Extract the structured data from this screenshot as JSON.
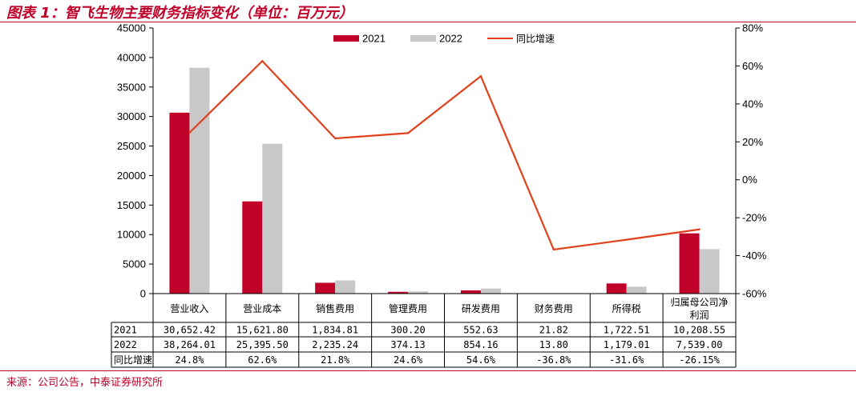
{
  "title": "图表 1：智飞生物主要财务指标变化（单位：百万元）",
  "source": "来源：公司公告，中泰证券研究所",
  "chart_data": {
    "type": "bar",
    "categories": [
      "营业收入",
      "营业成本",
      "销售费用",
      "管理费用",
      "研发费用",
      "财务费用",
      "所得税",
      "归属母公司净利润"
    ],
    "series": [
      {
        "name": "2021",
        "type": "bar",
        "axis": "left",
        "color": "#c00028",
        "values": [
          30652.42,
          15621.8,
          1834.81,
          300.2,
          552.63,
          21.82,
          1722.51,
          10208.55
        ]
      },
      {
        "name": "2022",
        "type": "bar",
        "axis": "left",
        "color": "#c8c8c8",
        "values": [
          38264.01,
          25395.5,
          2235.24,
          374.13,
          854.16,
          13.8,
          1179.01,
          7539.0
        ]
      },
      {
        "name": "同比增速",
        "type": "line",
        "axis": "right",
        "color": "#e0401a",
        "values": [
          24.8,
          62.6,
          21.8,
          24.6,
          54.6,
          -36.8,
          -31.6,
          -26.15
        ]
      }
    ],
    "y_left": {
      "min": 0,
      "max": 45000,
      "step": 5000,
      "ticks": [
        "0",
        "5000",
        "10000",
        "15000",
        "20000",
        "25000",
        "30000",
        "35000",
        "40000",
        "45000"
      ]
    },
    "y_right": {
      "min": -60,
      "max": 80,
      "step": 20,
      "ticks": [
        "-60%",
        "-40%",
        "-20%",
        "0%",
        "20%",
        "40%",
        "60%",
        "80%"
      ]
    },
    "legend_position": "top-center",
    "table": {
      "row_labels": [
        "2021",
        "2022",
        "同比增速"
      ],
      "rows": [
        [
          "30,652.42",
          "15,621.80",
          "1,834.81",
          "300.20",
          "552.63",
          "21.82",
          "1,722.51",
          "10,208.55"
        ],
        [
          "38,264.01",
          "25,395.50",
          "2,235.24",
          "374.13",
          "854.16",
          "13.80",
          "1,179.01",
          "7,539.00"
        ],
        [
          "24.8%",
          "62.6%",
          "21.8%",
          "24.6%",
          "54.6%",
          "-36.8%",
          "-31.6%",
          "-26.15%"
        ]
      ]
    }
  }
}
